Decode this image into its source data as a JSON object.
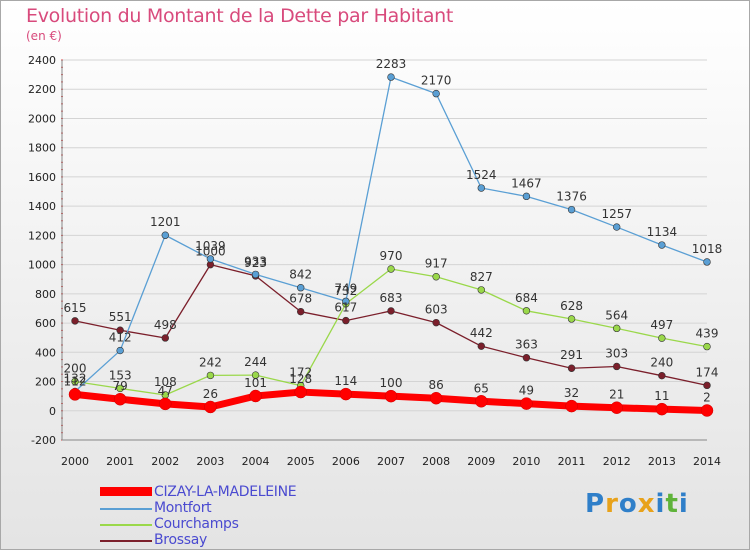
{
  "header": {
    "title": "Evolution du Montant de la Dette par Habitant",
    "subtitle": "(en €)"
  },
  "chart_data": {
    "type": "line",
    "title": "Evolution du Montant de la Dette par Habitant",
    "subtitle": "(en €)",
    "xlabel": "",
    "ylabel": "",
    "x": [
      2000,
      2001,
      2002,
      2003,
      2004,
      2005,
      2006,
      2007,
      2008,
      2009,
      2010,
      2011,
      2012,
      2013,
      2014
    ],
    "ylim": [
      -200,
      2400
    ],
    "yticks": [
      -200,
      0,
      200,
      400,
      600,
      800,
      1000,
      1200,
      1400,
      1600,
      1800,
      2000,
      2200,
      2400
    ],
    "grid": true,
    "legend_position": "bottom-left",
    "series": [
      {
        "name": "CIZAY-LA-MADELEINE",
        "color": "#ff0000",
        "values": [
          112,
          79,
          47,
          26,
          101,
          128,
          114,
          100,
          86,
          65,
          49,
          32,
          21,
          11,
          2
        ]
      },
      {
        "name": "Montfort",
        "color": "#5a9fd4",
        "values": [
          132,
          412,
          1201,
          1039,
          933,
          842,
          749,
          2283,
          2170,
          1524,
          1467,
          1376,
          1257,
          1134,
          1018
        ]
      },
      {
        "name": "Courchamps",
        "color": "#9ad84a",
        "values": [
          200,
          153,
          108,
          242,
          244,
          172,
          732,
          970,
          917,
          827,
          684,
          628,
          564,
          497,
          439
        ]
      },
      {
        "name": "Brossay",
        "color": "#7b1f2b",
        "values": [
          615,
          551,
          498,
          1000,
          923,
          678,
          617,
          683,
          603,
          442,
          363,
          291,
          303,
          240,
          174
        ]
      }
    ]
  },
  "logo": {
    "letters": [
      "P",
      "r",
      "o",
      "x",
      "i",
      "t",
      "i"
    ],
    "colors": [
      "#2f7fc9",
      "#e8a21a",
      "#2f7fc9",
      "#e8a21a",
      "#2f7fc9",
      "#5fb33a",
      "#2f7fc9"
    ]
  }
}
